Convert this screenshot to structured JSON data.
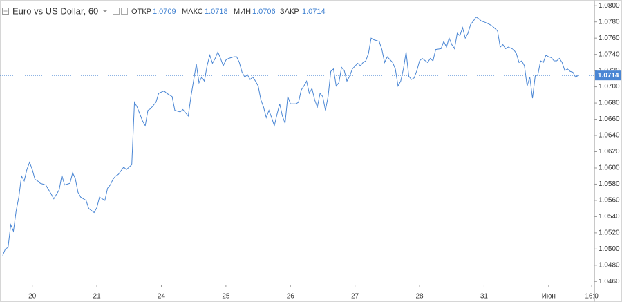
{
  "chart_data": {
    "type": "line",
    "title": "Euro vs US Dollar, 60",
    "ohlc": [
      {
        "label": "ОТКР",
        "value": 1.0709
      },
      {
        "label": "МАКС",
        "value": 1.0718
      },
      {
        "label": "МИН",
        "value": 1.0706
      },
      {
        "label": "ЗАКР",
        "value": 1.0714
      }
    ],
    "x": [
      0,
      1,
      2,
      3,
      4,
      5,
      6,
      7,
      8,
      9,
      10,
      11,
      12,
      13,
      14,
      16,
      18,
      19,
      21,
      22,
      23,
      25,
      26,
      27,
      28,
      29,
      31,
      32,
      34,
      35,
      36,
      38,
      39,
      40,
      41,
      42,
      43,
      45,
      46,
      48,
      49,
      50,
      52,
      53,
      54,
      55,
      57,
      58,
      60,
      61,
      63,
      64,
      66,
      67,
      69,
      70,
      72,
      73,
      74,
      75,
      76,
      77,
      78,
      79,
      80,
      81,
      82,
      83,
      84,
      86,
      87,
      88,
      89,
      90,
      91,
      92,
      93,
      94,
      95,
      96,
      97,
      98,
      99,
      100,
      101,
      102,
      103,
      104,
      105,
      106,
      107,
      109,
      110,
      111,
      112,
      113,
      114,
      115,
      116,
      117,
      118,
      119,
      120,
      121,
      122,
      123,
      124,
      125,
      126,
      127,
      128,
      129,
      130,
      132,
      133,
      134,
      135,
      136,
      137,
      138,
      140,
      141,
      142,
      143,
      145,
      146,
      147,
      148,
      149,
      150,
      151,
      152,
      153,
      154,
      155,
      156,
      158,
      159,
      160,
      161,
      163,
      164,
      165,
      166,
      167,
      168,
      169,
      170,
      171,
      172,
      173,
      174,
      175,
      176,
      177,
      178,
      179,
      181,
      182,
      184,
      185,
      186,
      187,
      188,
      190,
      191,
      192,
      193,
      194,
      195,
      196,
      197,
      198,
      199,
      200,
      201,
      202,
      203,
      204,
      205,
      206,
      207,
      208,
      209,
      210,
      211,
      212,
      213,
      214
    ],
    "series": [
      {
        "color": "#4a86d4",
        "values": [
          1.0492,
          1.05,
          1.0502,
          1.053,
          1.0522,
          1.0547,
          1.0564,
          1.059,
          1.0584,
          1.0598,
          1.0607,
          1.0598,
          1.0586,
          1.0584,
          1.0581,
          1.0579,
          1.0568,
          1.0562,
          1.0573,
          1.0591,
          1.0579,
          1.0581,
          1.0594,
          1.0587,
          1.057,
          1.0564,
          1.056,
          1.055,
          1.0545,
          1.0551,
          1.0564,
          1.056,
          1.0575,
          1.0579,
          1.0586,
          1.059,
          1.0592,
          1.0601,
          1.0598,
          1.0604,
          1.0681,
          1.0675,
          1.0658,
          1.0652,
          1.0671,
          1.0673,
          1.0681,
          1.0692,
          1.0695,
          1.0692,
          1.0688,
          1.0671,
          1.0669,
          1.0672,
          1.0664,
          1.0688,
          1.0728,
          1.0705,
          1.0712,
          1.0707,
          1.0726,
          1.0739,
          1.0729,
          1.0735,
          1.0743,
          1.0735,
          1.0726,
          1.0733,
          1.0735,
          1.0737,
          1.0737,
          1.073,
          1.0718,
          1.0712,
          1.0715,
          1.0709,
          1.0712,
          1.0707,
          1.0701,
          1.0684,
          1.0675,
          1.0662,
          1.0671,
          1.0662,
          1.0652,
          1.0666,
          1.0679,
          1.0664,
          1.0655,
          1.0688,
          1.0679,
          1.0679,
          1.0681,
          1.0696,
          1.0701,
          1.0707,
          1.0692,
          1.0698,
          1.0684,
          1.0675,
          1.0692,
          1.0688,
          1.0671,
          1.0688,
          1.0719,
          1.0722,
          1.0701,
          1.0705,
          1.0724,
          1.072,
          1.0707,
          1.0713,
          1.0722,
          1.0729,
          1.0726,
          1.073,
          1.0732,
          1.0741,
          1.076,
          1.0758,
          1.0756,
          1.0746,
          1.073,
          1.0737,
          1.073,
          1.0722,
          1.0701,
          1.0707,
          1.0722,
          1.0743,
          1.0713,
          1.0709,
          1.0711,
          1.072,
          1.0732,
          1.0735,
          1.073,
          1.0735,
          1.0732,
          1.0746,
          1.0747,
          1.0756,
          1.0749,
          1.076,
          1.0752,
          1.0747,
          1.0766,
          1.0763,
          1.0773,
          1.076,
          1.0766,
          1.0777,
          1.0781,
          1.0786,
          1.0784,
          1.0781,
          1.078,
          1.0777,
          1.0775,
          1.0769,
          1.0749,
          1.0752,
          1.0747,
          1.0749,
          1.0746,
          1.0741,
          1.073,
          1.0732,
          1.0726,
          1.0701,
          1.0712,
          1.0686,
          1.0713,
          1.0715,
          1.0732,
          1.073,
          1.0739,
          1.0737,
          1.0736,
          1.0732,
          1.0732,
          1.0735,
          1.073,
          1.072,
          1.0722,
          1.0719,
          1.0718,
          1.0712,
          1.0714
        ]
      }
    ],
    "xlim": [
      -1,
      220
    ],
    "xticks": [
      {
        "value": 11,
        "label": "20"
      },
      {
        "value": 35,
        "label": "21"
      },
      {
        "value": 59,
        "label": "24"
      },
      {
        "value": 83,
        "label": "25"
      },
      {
        "value": 107,
        "label": "26"
      },
      {
        "value": 131,
        "label": "27"
      },
      {
        "value": 155,
        "label": "28"
      },
      {
        "value": 179,
        "label": "31"
      },
      {
        "value": 203,
        "label": "Июн"
      },
      {
        "value": 219,
        "label": "16:0"
      }
    ],
    "ylim": [
      1.0456,
      1.0807
    ],
    "yticks": [
      {
        "value": 1.046,
        "label": "1.0460"
      },
      {
        "value": 1.048,
        "label": "1.0480"
      },
      {
        "value": 1.05,
        "label": "1.0500"
      },
      {
        "value": 1.052,
        "label": "1.0520"
      },
      {
        "value": 1.054,
        "label": "1.0540"
      },
      {
        "value": 1.056,
        "label": "1.0560"
      },
      {
        "value": 1.058,
        "label": "1.0580"
      },
      {
        "value": 1.06,
        "label": "1.0600"
      },
      {
        "value": 1.062,
        "label": "1.0620"
      },
      {
        "value": 1.064,
        "label": "1.0640"
      },
      {
        "value": 1.066,
        "label": "1.0660"
      },
      {
        "value": 1.068,
        "label": "1.0680"
      },
      {
        "value": 1.07,
        "label": "1.0700"
      },
      {
        "value": 1.072,
        "label": "1.0720"
      },
      {
        "value": 1.074,
        "label": "1.0740"
      },
      {
        "value": 1.076,
        "label": "1.0760"
      },
      {
        "value": 1.078,
        "label": "1.0780"
      },
      {
        "value": 1.08,
        "label": "1.0800"
      }
    ],
    "grid": false
  }
}
